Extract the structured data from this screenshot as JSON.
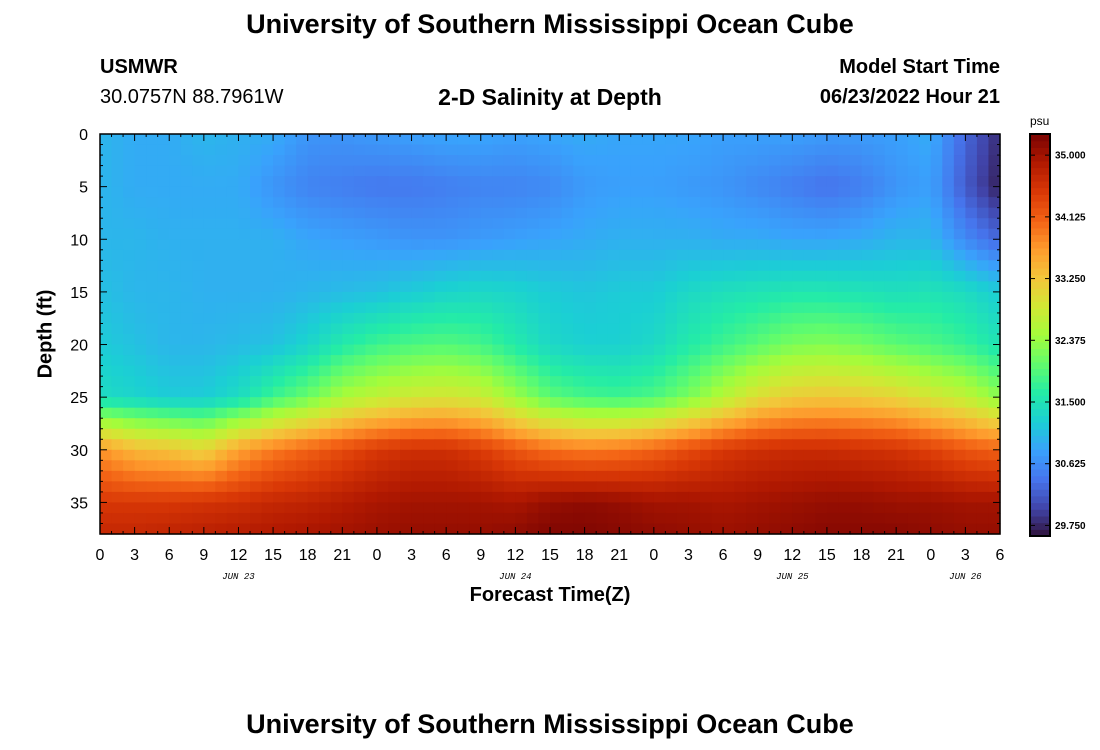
{
  "header": {
    "title": "University of Southern Mississippi Ocean Cube",
    "station": "USMWR",
    "coords": "30.0757N  88.7961W",
    "subtitle": "2-D Salinity at Depth",
    "model_start_label": "Model Start Time",
    "model_start_value": "06/23/2022 Hour 21"
  },
  "footer": {
    "title": "University of Southern Mississippi Ocean Cube"
  },
  "colors": {
    "colormap": [
      "#30123b",
      "#4145ab",
      "#4675ed",
      "#39a2fc",
      "#1bcfd4",
      "#24eca6",
      "#61fc6c",
      "#a4fc3b",
      "#d1e834",
      "#f3c63a",
      "#fe9b2d",
      "#f36315",
      "#d93806",
      "#b11901",
      "#7a0402"
    ]
  },
  "chart_data": {
    "type": "heatmap",
    "title": "2-D Salinity at Depth",
    "xlabel": "Forecast Time(Z)",
    "ylabel": "Depth (ft)",
    "x_range_hours": [
      0,
      78
    ],
    "x_ticks": [
      {
        "h": 0,
        "label": "0"
      },
      {
        "h": 3,
        "label": "3"
      },
      {
        "h": 6,
        "label": "6"
      },
      {
        "h": 9,
        "label": "9"
      },
      {
        "h": 12,
        "label": "12"
      },
      {
        "h": 15,
        "label": "15"
      },
      {
        "h": 18,
        "label": "18"
      },
      {
        "h": 21,
        "label": "21"
      },
      {
        "h": 24,
        "label": "0"
      },
      {
        "h": 27,
        "label": "3"
      },
      {
        "h": 30,
        "label": "6"
      },
      {
        "h": 33,
        "label": "9"
      },
      {
        "h": 36,
        "label": "12"
      },
      {
        "h": 39,
        "label": "15"
      },
      {
        "h": 42,
        "label": "18"
      },
      {
        "h": 45,
        "label": "21"
      },
      {
        "h": 48,
        "label": "0"
      },
      {
        "h": 51,
        "label": "3"
      },
      {
        "h": 54,
        "label": "6"
      },
      {
        "h": 57,
        "label": "9"
      },
      {
        "h": 60,
        "label": "12"
      },
      {
        "h": 63,
        "label": "15"
      },
      {
        "h": 66,
        "label": "18"
      },
      {
        "h": 69,
        "label": "21"
      },
      {
        "h": 72,
        "label": "0"
      },
      {
        "h": 75,
        "label": "3"
      },
      {
        "h": 78,
        "label": "6"
      }
    ],
    "date_labels": [
      {
        "h": 12,
        "label": "JUN 23"
      },
      {
        "h": 36,
        "label": "JUN 24"
      },
      {
        "h": 60,
        "label": "JUN 25"
      },
      {
        "h": 75,
        "label": "JUN 26"
      }
    ],
    "y_range_ft": [
      0,
      38
    ],
    "y_ticks": [
      0,
      5,
      10,
      15,
      20,
      25,
      30,
      35
    ],
    "colorbar": {
      "unit": "psu",
      "range": [
        29.6,
        35.3
      ],
      "ticks": [
        "35.000",
        "34.125",
        "33.250",
        "32.375",
        "31.500",
        "30.625",
        "29.750"
      ]
    },
    "grid_hours": [
      0,
      3,
      6,
      9,
      12,
      15,
      18,
      21,
      24,
      27,
      30,
      33,
      36,
      39,
      42,
      45,
      48,
      51,
      54,
      57,
      60,
      63,
      66,
      69,
      72,
      75,
      78
    ],
    "grid_depths_ft": [
      0,
      5,
      10,
      15,
      20,
      25,
      30,
      35,
      38
    ],
    "salinity_psu": [
      [
        31.0,
        30.9,
        30.9,
        31.0,
        30.95,
        30.9,
        30.7,
        30.7,
        30.75,
        30.8,
        30.85,
        30.85,
        30.8,
        30.85,
        30.9,
        30.85,
        30.85,
        30.85,
        30.8,
        30.8,
        30.8,
        30.75,
        30.75,
        30.8,
        30.9,
        30.3,
        29.8
      ],
      [
        31.0,
        30.9,
        30.9,
        30.9,
        30.9,
        30.7,
        30.55,
        30.5,
        30.45,
        30.45,
        30.5,
        30.55,
        30.55,
        30.6,
        30.75,
        30.8,
        30.8,
        30.75,
        30.7,
        30.6,
        30.5,
        30.4,
        30.5,
        30.7,
        30.8,
        30.2,
        29.7
      ],
      [
        31.0,
        31.0,
        30.95,
        30.95,
        30.95,
        30.95,
        30.85,
        30.8,
        30.75,
        30.7,
        30.7,
        30.75,
        30.8,
        30.85,
        30.9,
        30.95,
        30.95,
        30.95,
        30.9,
        30.9,
        30.85,
        30.85,
        30.9,
        31.0,
        31.0,
        30.6,
        30.3
      ],
      [
        31.1,
        31.0,
        31.0,
        30.95,
        30.95,
        30.95,
        31.0,
        31.05,
        31.1,
        31.2,
        31.3,
        31.35,
        31.3,
        31.2,
        31.15,
        31.2,
        31.2,
        31.35,
        31.45,
        31.5,
        31.55,
        31.55,
        31.5,
        31.45,
        31.5,
        31.4,
        31.2
      ],
      [
        31.2,
        31.1,
        31.0,
        31.0,
        31.05,
        31.1,
        31.3,
        31.6,
        31.8,
        31.9,
        31.95,
        31.85,
        31.6,
        31.35,
        31.25,
        31.25,
        31.35,
        31.6,
        31.8,
        32.0,
        32.2,
        32.25,
        32.15,
        32.0,
        31.9,
        31.75,
        31.5
      ],
      [
        31.4,
        31.3,
        31.2,
        31.2,
        31.4,
        31.8,
        32.1,
        32.5,
        32.7,
        32.85,
        32.9,
        32.8,
        32.4,
        32.0,
        31.85,
        31.8,
        31.9,
        32.2,
        32.6,
        33.0,
        33.2,
        33.25,
        33.2,
        33.1,
        32.9,
        32.7,
        32.3
      ],
      [
        33.7,
        33.4,
        33.3,
        33.1,
        33.6,
        33.9,
        34.1,
        34.3,
        34.5,
        34.6,
        34.6,
        34.45,
        34.2,
        34.0,
        33.9,
        33.95,
        34.1,
        34.3,
        34.5,
        34.6,
        34.65,
        34.65,
        34.6,
        34.55,
        34.4,
        34.2,
        34.1
      ],
      [
        34.5,
        34.5,
        34.5,
        34.55,
        34.6,
        34.7,
        34.75,
        34.85,
        34.95,
        35.0,
        35.0,
        35.0,
        34.95,
        35.1,
        35.15,
        35.1,
        35.0,
        35.0,
        34.95,
        35.0,
        35.05,
        35.1,
        35.1,
        35.05,
        35.05,
        35.0,
        35.0
      ],
      [
        34.7,
        34.7,
        34.75,
        34.8,
        34.85,
        34.9,
        34.95,
        35.0,
        35.05,
        35.1,
        35.1,
        35.1,
        35.15,
        35.25,
        35.25,
        35.2,
        35.15,
        35.1,
        35.05,
        35.1,
        35.15,
        35.2,
        35.2,
        35.2,
        35.15,
        35.1,
        35.1
      ]
    ]
  }
}
